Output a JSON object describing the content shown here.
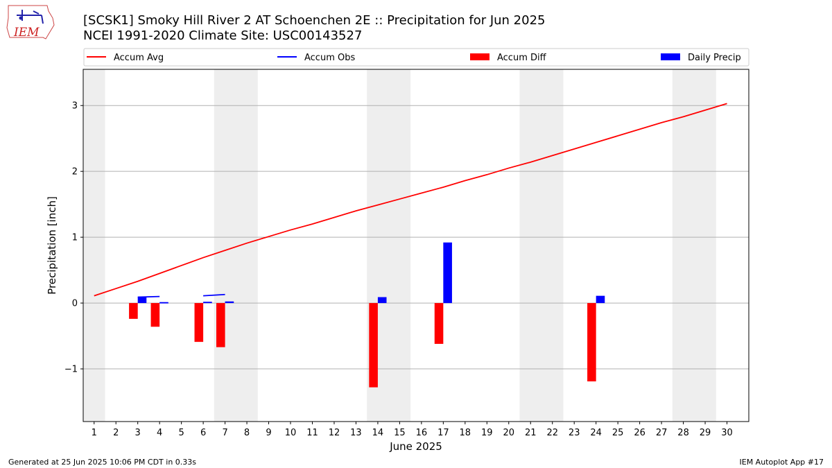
{
  "title": {
    "line1": "[SCSK1] Smoky Hill River 2 AT Schoenchen 2E :: Precipitation for Jun 2025",
    "line2": "NCEI 1991-2020 Climate Site: USC00143527"
  },
  "logo": {
    "text": "IEM",
    "color": "#cc2222"
  },
  "footer": {
    "left": "Generated at 25 Jun 2025 10:06 PM CDT in 0.33s",
    "right": "IEM Autoplot App #17"
  },
  "chart_data": {
    "type": "bar",
    "xlabel": "June 2025",
    "ylabel": "Precipitation [inch]",
    "xlim": [
      0.5,
      31
    ],
    "ylim": [
      -1.8,
      3.55
    ],
    "x_ticks": [
      1,
      2,
      3,
      4,
      5,
      6,
      7,
      8,
      9,
      10,
      11,
      12,
      13,
      14,
      15,
      16,
      17,
      18,
      19,
      20,
      21,
      22,
      23,
      24,
      25,
      26,
      27,
      28,
      29,
      30
    ],
    "y_ticks": [
      -1,
      0,
      1,
      2,
      3
    ],
    "y_tick_labels": [
      "−1",
      "0",
      "1",
      "2",
      "3"
    ],
    "grid": "horizontal",
    "weekend_shading": [
      [
        0.5,
        1.5
      ],
      [
        6.5,
        8.5
      ],
      [
        13.5,
        15.5
      ],
      [
        20.5,
        22.5
      ],
      [
        27.5,
        29.5
      ]
    ],
    "legend_position": "top",
    "colors": {
      "avg": "#ff0000",
      "obs": "#0000ff",
      "diff": "#ff0000",
      "daily": "#0000ff",
      "shade": "#eeeeee"
    },
    "legend": [
      {
        "label": "Accum Avg",
        "kind": "line",
        "color": "#ff0000"
      },
      {
        "label": "Accum Obs",
        "kind": "line",
        "color": "#0000ff"
      },
      {
        "label": "Accum Diff",
        "kind": "bar",
        "color": "#ff0000"
      },
      {
        "label": "Daily Precip",
        "kind": "bar",
        "color": "#0000ff"
      }
    ],
    "accum_avg": {
      "x": [
        1,
        2,
        3,
        4,
        5,
        6,
        7,
        8,
        9,
        10,
        11,
        12,
        13,
        14,
        15,
        16,
        17,
        18,
        19,
        20,
        21,
        22,
        23,
        24,
        25,
        26,
        27,
        28,
        29,
        30
      ],
      "values": [
        0.11,
        0.22,
        0.33,
        0.45,
        0.57,
        0.69,
        0.8,
        0.91,
        1.01,
        1.11,
        1.2,
        1.3,
        1.4,
        1.49,
        1.58,
        1.67,
        1.76,
        1.86,
        1.95,
        2.05,
        2.14,
        2.24,
        2.34,
        2.44,
        2.54,
        2.64,
        2.74,
        2.83,
        2.93,
        3.03
      ]
    },
    "accum_obs_segments": [
      {
        "x": [
          3,
          4
        ],
        "values": [
          0.09,
          0.1
        ]
      },
      {
        "x": [
          4,
          4.4
        ],
        "values": [
          0.005,
          0.005
        ]
      },
      {
        "x": [
          6,
          7
        ],
        "values": [
          0.11,
          0.13
        ]
      },
      {
        "x": [
          6,
          6.4
        ],
        "values": [
          0.01,
          0.01
        ]
      },
      {
        "x": [
          7,
          7.4
        ],
        "values": [
          0.015,
          0.015
        ]
      }
    ],
    "accum_diff": [
      {
        "day": 3,
        "value": -0.24
      },
      {
        "day": 4,
        "value": -0.36
      },
      {
        "day": 6,
        "value": -0.59
      },
      {
        "day": 7,
        "value": -0.67
      },
      {
        "day": 14,
        "value": -1.28
      },
      {
        "day": 17,
        "value": -0.62
      },
      {
        "day": 24,
        "value": -1.19
      }
    ],
    "daily_precip": [
      {
        "day": 3,
        "value": 0.09
      },
      {
        "day": 4,
        "value": 0.005
      },
      {
        "day": 6,
        "value": 0.01
      },
      {
        "day": 7,
        "value": 0.015
      },
      {
        "day": 14,
        "value": 0.09
      },
      {
        "day": 17,
        "value": 0.92
      },
      {
        "day": 24,
        "value": 0.11
      }
    ]
  }
}
